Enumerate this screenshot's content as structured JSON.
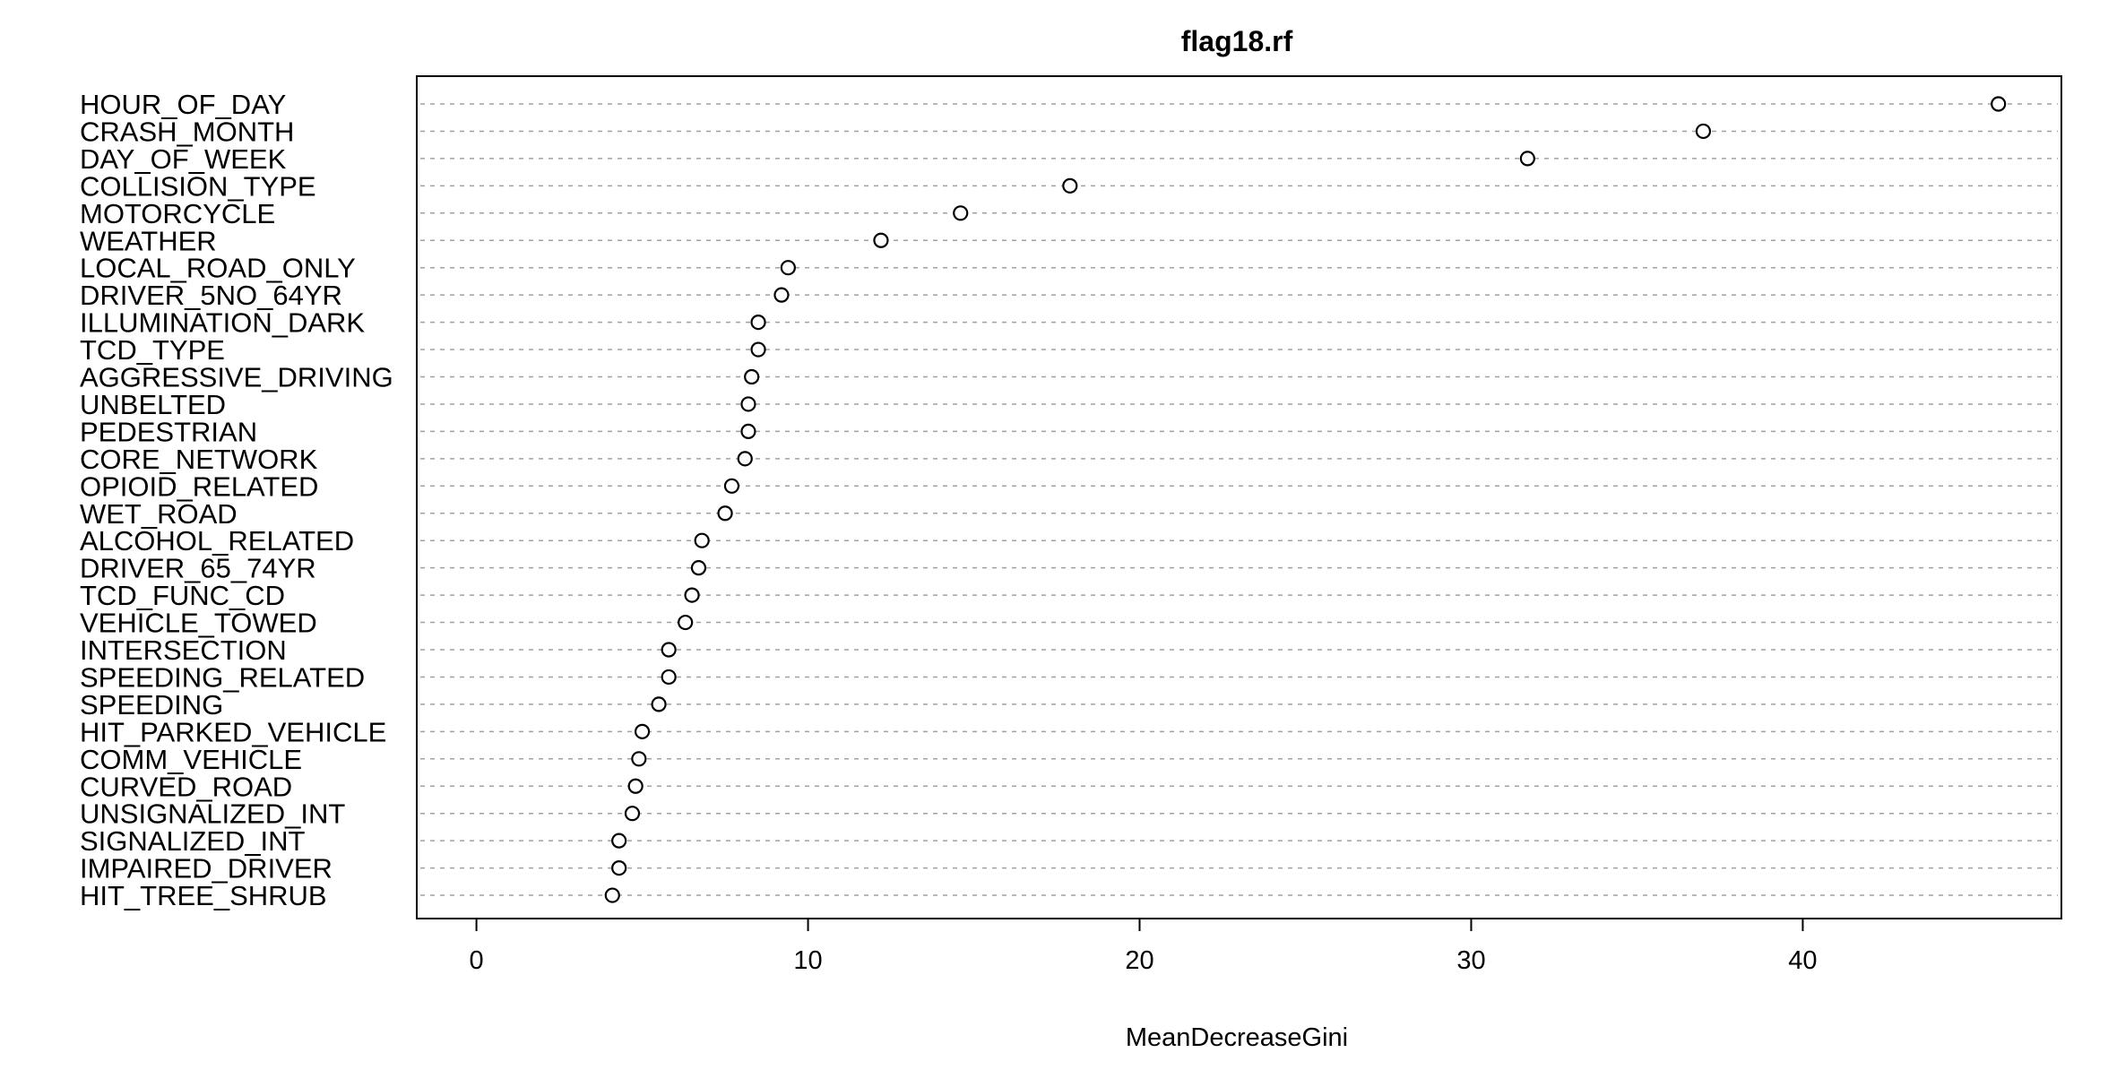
{
  "chart_data": {
    "type": "scatter",
    "title": "flag18.rf",
    "xlabel": "MeanDecreaseGini",
    "ylabel": "",
    "xlim": [
      -1.8,
      47.8
    ],
    "xticks": [
      0,
      10,
      20,
      30,
      40
    ],
    "grid": "dotted horizontal",
    "categories": [
      "HOUR_OF_DAY",
      "CRASH_MONTH",
      "DAY_OF_WEEK",
      "COLLISION_TYPE",
      "MOTORCYCLE",
      "WEATHER",
      "LOCAL_ROAD_ONLY",
      "DRIVER_5NO_64YR",
      "ILLUMINATION_DARK",
      "TCD_TYPE",
      "AGGRESSIVE_DRIVING",
      "UNBELTED",
      "PEDESTRIAN",
      "CORE_NETWORK",
      "OPIOID_RELATED",
      "WET_ROAD",
      "ALCOHOL_RELATED",
      "DRIVER_65_74YR",
      "TCD_FUNC_CD",
      "VEHICLE_TOWED",
      "INTERSECTION",
      "SPEEDING_RELATED",
      "SPEEDING",
      "HIT_PARKED_VEHICLE",
      "COMM_VEHICLE",
      "CURVED_ROAD",
      "UNSIGNALIZED_INT",
      "SIGNALIZED_INT",
      "IMPAIRED_DRIVER",
      "HIT_TREE_SHRUB"
    ],
    "values": [
      45.9,
      37.0,
      31.7,
      17.9,
      14.6,
      12.2,
      9.4,
      9.2,
      8.5,
      8.5,
      8.3,
      8.2,
      8.2,
      8.1,
      7.7,
      7.5,
      6.8,
      6.7,
      6.5,
      6.3,
      5.8,
      5.8,
      5.5,
      5.0,
      4.9,
      4.8,
      4.7,
      4.3,
      4.3,
      4.1
    ]
  }
}
